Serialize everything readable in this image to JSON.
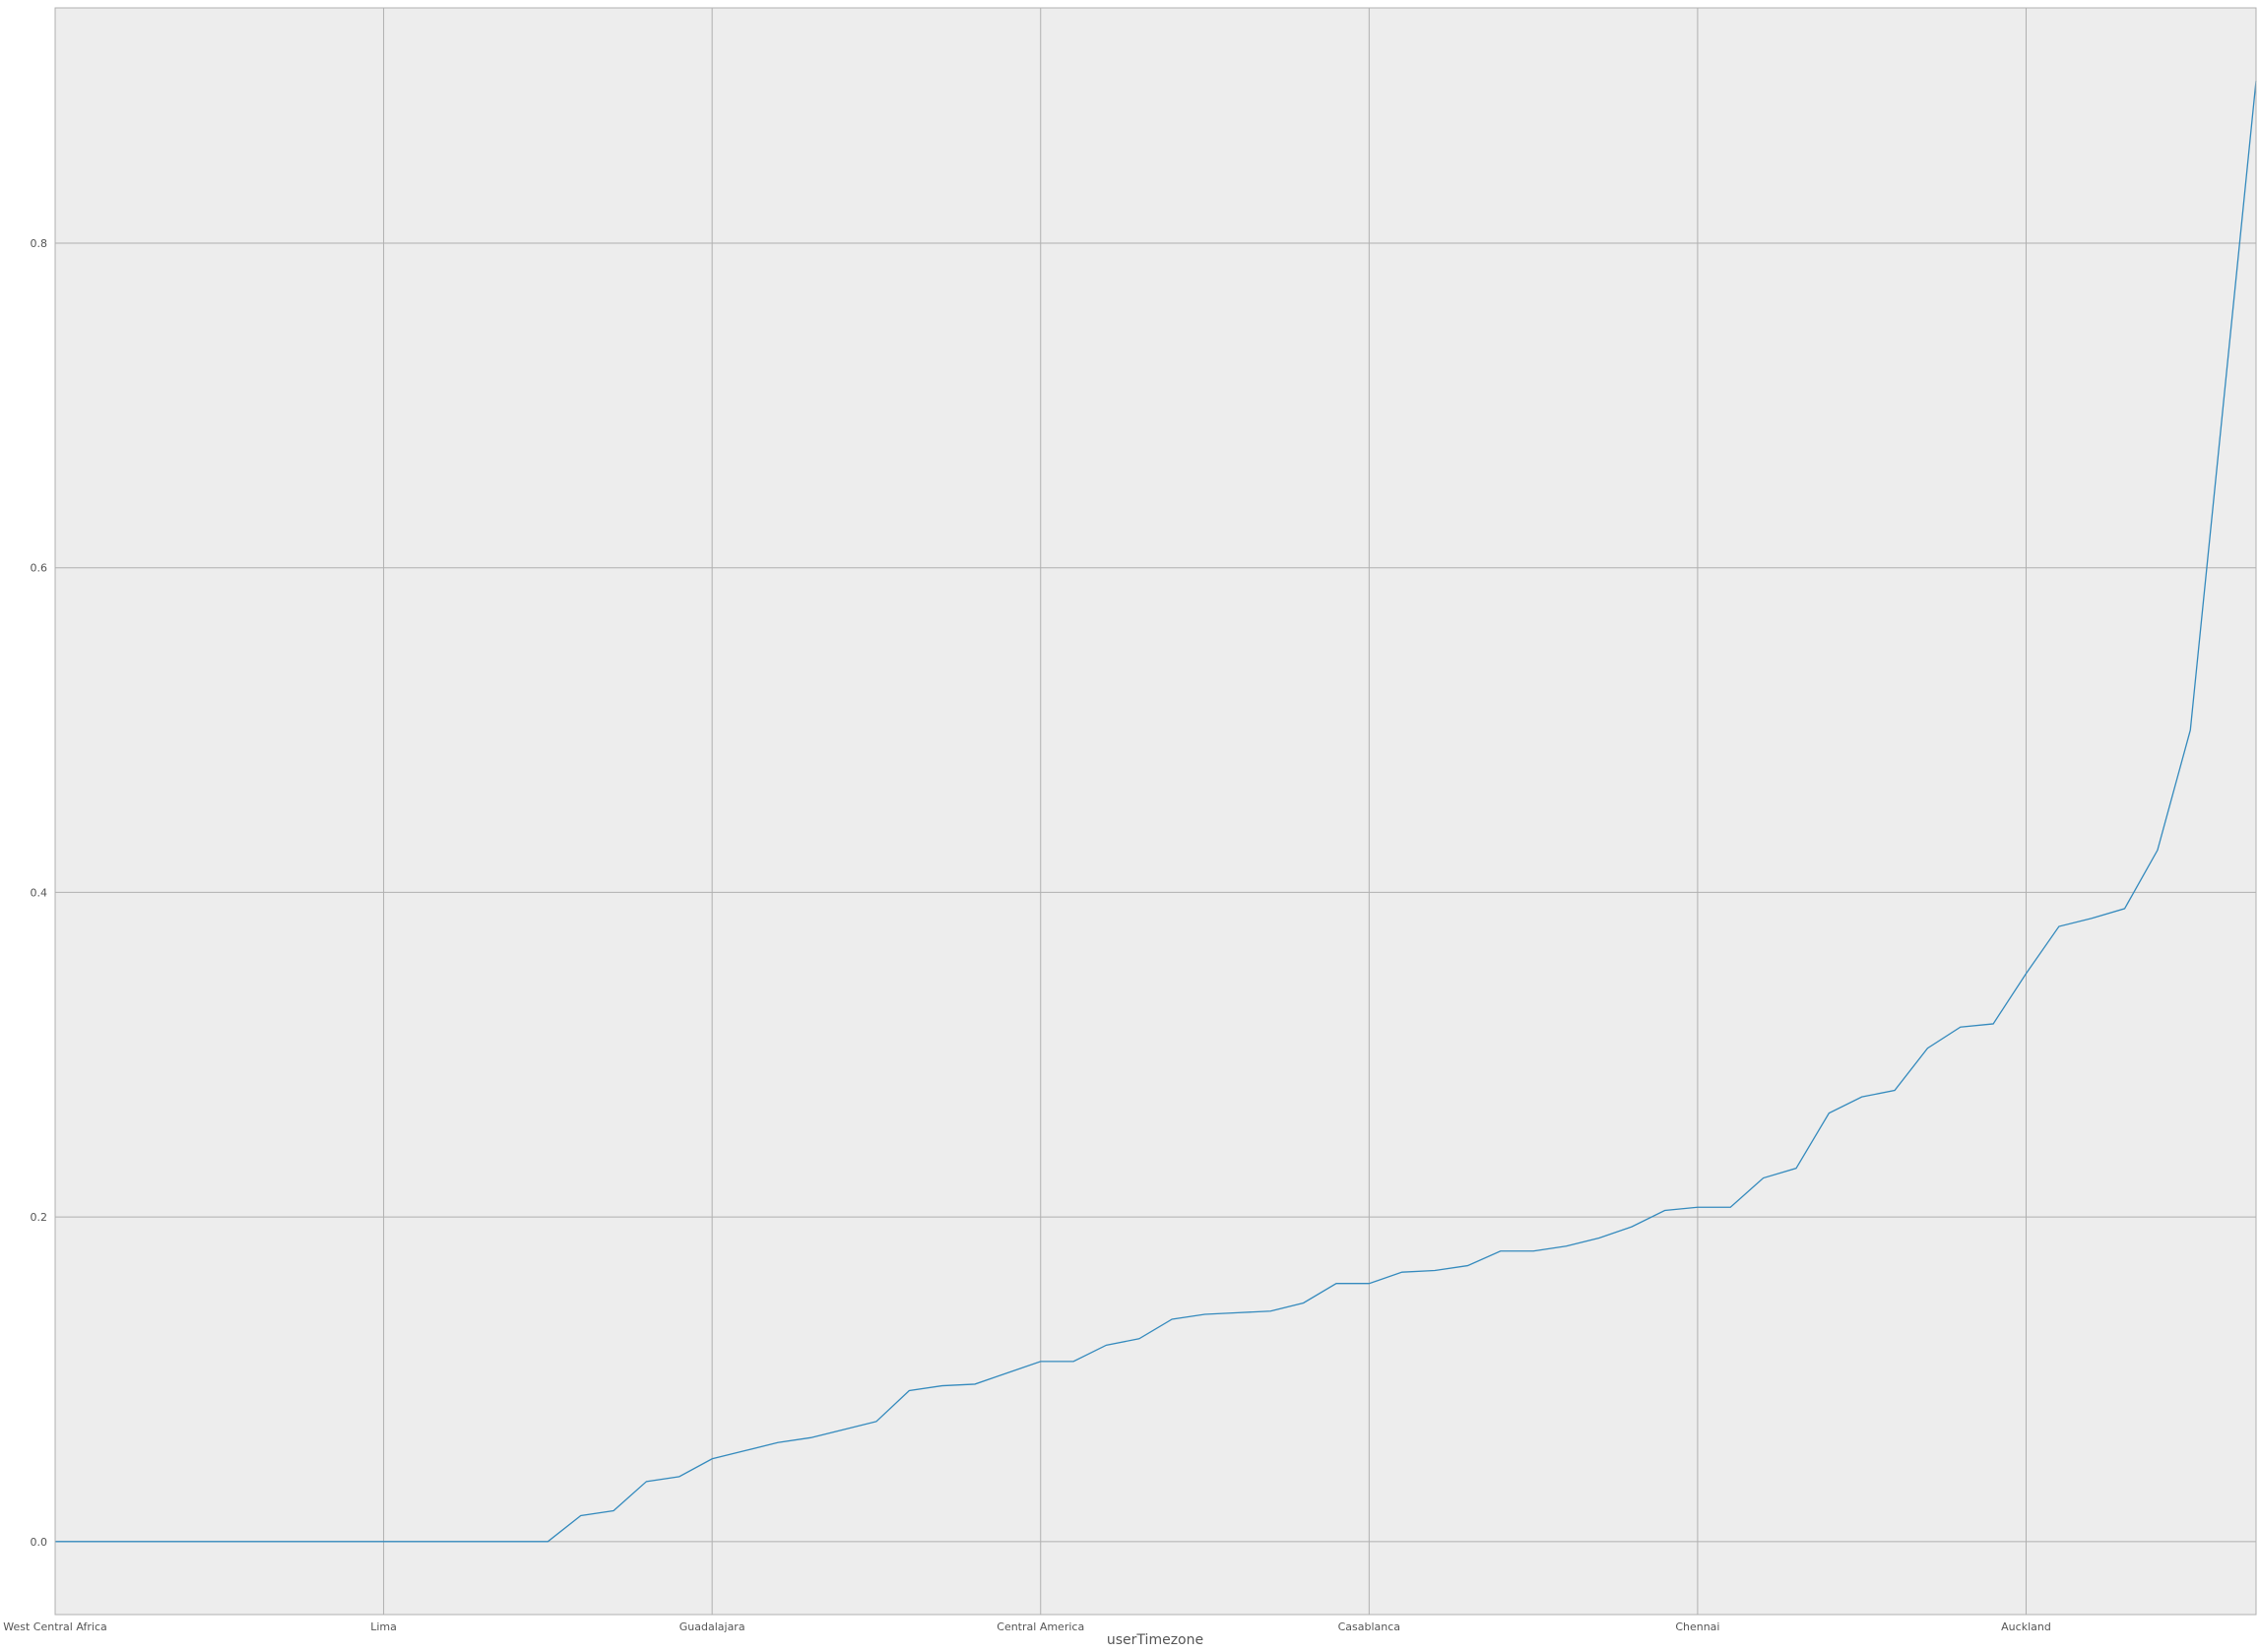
{
  "chart_data": {
    "type": "line",
    "title": "",
    "xlabel": "userTimezone",
    "ylabel": "",
    "grid": true,
    "legend": "none",
    "colors": {
      "background": "#ededed",
      "grid": "#b0b0b0",
      "line": "#348abd",
      "tick_text": "#555555"
    },
    "x_tick_labels": [
      "West Central Africa",
      "Lima",
      "Guadalajara",
      "Central America",
      "Casablanca",
      "Chennai",
      "Auckland"
    ],
    "x_tick_indices": [
      0,
      10,
      20,
      30,
      40,
      50,
      60
    ],
    "y_ticks": [
      0.0,
      0.2,
      0.4,
      0.6,
      0.8
    ],
    "y_tick_labels": [
      "0.0",
      "0.2",
      "0.4",
      "0.6",
      "0.8"
    ],
    "xlim": [
      0,
      67
    ],
    "ylim": [
      -0.045,
      0.945
    ],
    "series": [
      {
        "values": [
          0.0,
          0.0,
          0.0,
          0.0,
          0.0,
          0.0,
          0.0,
          0.0,
          0.0,
          0.0,
          0.0,
          0.0,
          0.0,
          0.0,
          0.0,
          0.0,
          0.016,
          0.019,
          0.037,
          0.04,
          0.051,
          0.056,
          0.061,
          0.064,
          0.069,
          0.074,
          0.093,
          0.096,
          0.097,
          0.104,
          0.111,
          0.111,
          0.121,
          0.125,
          0.137,
          0.14,
          0.141,
          0.142,
          0.147,
          0.159,
          0.159,
          0.166,
          0.167,
          0.17,
          0.179,
          0.179,
          0.182,
          0.187,
          0.194,
          0.204,
          0.206,
          0.206,
          0.224,
          0.23,
          0.264,
          0.274,
          0.278,
          0.304,
          0.317,
          0.319,
          0.35,
          0.379,
          0.384,
          0.39,
          0.426,
          0.5,
          0.7,
          0.9
        ]
      }
    ]
  }
}
